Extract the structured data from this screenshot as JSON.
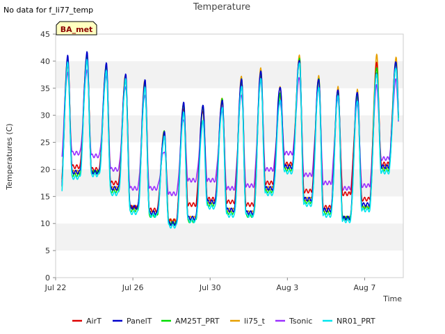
{
  "page": {
    "no_data_note": "No data for f_li77_temp",
    "badge_label": "BA_met"
  },
  "chart_data": {
    "type": "line",
    "title": "Temperature",
    "xlabel": "Time",
    "ylabel": "Temperatures (C)",
    "ylim": [
      0,
      45
    ],
    "yticks": [
      0,
      5,
      10,
      15,
      20,
      25,
      30,
      35,
      40,
      45
    ],
    "xlim": [
      "2023-07-22",
      "2023-08-09"
    ],
    "xticks": [
      {
        "label": "Jul 22",
        "date": "2023-07-22"
      },
      {
        "label": "Jul 26",
        "date": "2023-07-26"
      },
      {
        "label": "Jul 30",
        "date": "2023-07-30"
      },
      {
        "label": "Aug 3",
        "date": "2023-08-03"
      },
      {
        "label": "Aug 7",
        "date": "2023-08-07"
      }
    ],
    "grid": "horizontal bands",
    "legend_position": "bottom",
    "days": [
      "2023-07-22",
      "2023-07-23",
      "2023-07-24",
      "2023-07-25",
      "2023-07-26",
      "2023-07-27",
      "2023-07-28",
      "2023-07-29",
      "2023-07-30",
      "2023-07-31",
      "2023-08-01",
      "2023-08-02",
      "2023-08-03",
      "2023-08-04",
      "2023-08-05",
      "2023-08-06",
      "2023-08-07",
      "2023-08-08"
    ],
    "series": [
      {
        "name": "AirT",
        "color": "#dd0000",
        "daily_max": [
          39.5,
          40.5,
          38.5,
          37.0,
          35.5,
          26.5,
          31.5,
          31.0,
          32.5,
          36.0,
          37.5,
          34.0,
          40.0,
          36.5,
          34.5,
          33.5,
          39.5,
          39.5
        ],
        "daily_min": [
          15.5,
          20.5,
          20.0,
          17.5,
          13.0,
          12.5,
          10.5,
          13.5,
          14.5,
          14.0,
          13.5,
          17.5,
          21.0,
          16.0,
          13.0,
          15.5,
          14.5,
          21.0
        ]
      },
      {
        "name": "PanelT",
        "color": "#0000cc",
        "daily_max": [
          40.8,
          41.5,
          39.5,
          37.5,
          36.5,
          27.0,
          32.5,
          32.0,
          33.0,
          37.0,
          38.5,
          35.5,
          40.5,
          37.0,
          35.0,
          34.5,
          38.0,
          40.0
        ],
        "daily_min": [
          14.5,
          19.5,
          19.5,
          16.5,
          13.0,
          12.0,
          10.0,
          11.0,
          14.0,
          12.5,
          12.0,
          16.5,
          20.5,
          14.5,
          12.5,
          11.0,
          13.5,
          20.5
        ]
      },
      {
        "name": "AM25T_PRT",
        "color": "#00dd00",
        "daily_max": [
          40.0,
          40.8,
          38.8,
          37.0,
          35.8,
          26.8,
          32.0,
          31.5,
          32.8,
          36.5,
          38.0,
          34.0,
          40.5,
          36.8,
          34.5,
          34.0,
          39.0,
          40.0
        ],
        "daily_min": [
          14.0,
          19.0,
          19.5,
          16.0,
          12.5,
          11.5,
          10.0,
          10.5,
          13.5,
          12.0,
          11.5,
          16.0,
          20.0,
          14.0,
          12.0,
          11.0,
          13.0,
          20.0
        ]
      },
      {
        "name": "li75_t",
        "color": "#e69f00",
        "daily_max": [
          40.5,
          41.0,
          39.0,
          37.5,
          36.5,
          27.0,
          32.0,
          31.5,
          33.0,
          37.0,
          38.5,
          35.0,
          40.8,
          37.0,
          35.0,
          34.5,
          41.0,
          40.5
        ],
        "daily_min": [
          14.5,
          19.5,
          19.5,
          16.5,
          13.0,
          12.0,
          10.5,
          11.0,
          14.0,
          12.5,
          12.0,
          16.5,
          20.5,
          14.5,
          12.5,
          11.0,
          13.0,
          20.5
        ]
      },
      {
        "name": "Tsonic",
        "color": "#9b30ff",
        "daily_max": [
          38.0,
          38.5,
          37.5,
          35.5,
          34.0,
          23.5,
          29.5,
          29.0,
          31.0,
          34.0,
          36.5,
          32.5,
          37.0,
          35.0,
          33.0,
          32.0,
          35.5,
          36.5
        ],
        "daily_min": [
          20.5,
          23.0,
          22.5,
          20.0,
          16.5,
          16.5,
          15.5,
          18.0,
          18.0,
          16.5,
          17.0,
          20.0,
          23.0,
          19.0,
          17.5,
          16.5,
          17.0,
          22.0
        ]
      },
      {
        "name": "NR01_PRT",
        "color": "#00e5ee",
        "daily_max": [
          39.5,
          40.0,
          38.0,
          36.5,
          35.0,
          26.0,
          30.5,
          29.0,
          31.5,
          35.5,
          37.0,
          33.0,
          40.0,
          35.5,
          34.0,
          33.0,
          38.0,
          39.0
        ],
        "daily_min": [
          13.5,
          18.5,
          19.0,
          15.5,
          12.0,
          11.5,
          9.5,
          10.5,
          13.0,
          11.5,
          11.5,
          15.5,
          19.5,
          13.5,
          11.5,
          10.5,
          12.5,
          19.5
        ]
      }
    ]
  }
}
